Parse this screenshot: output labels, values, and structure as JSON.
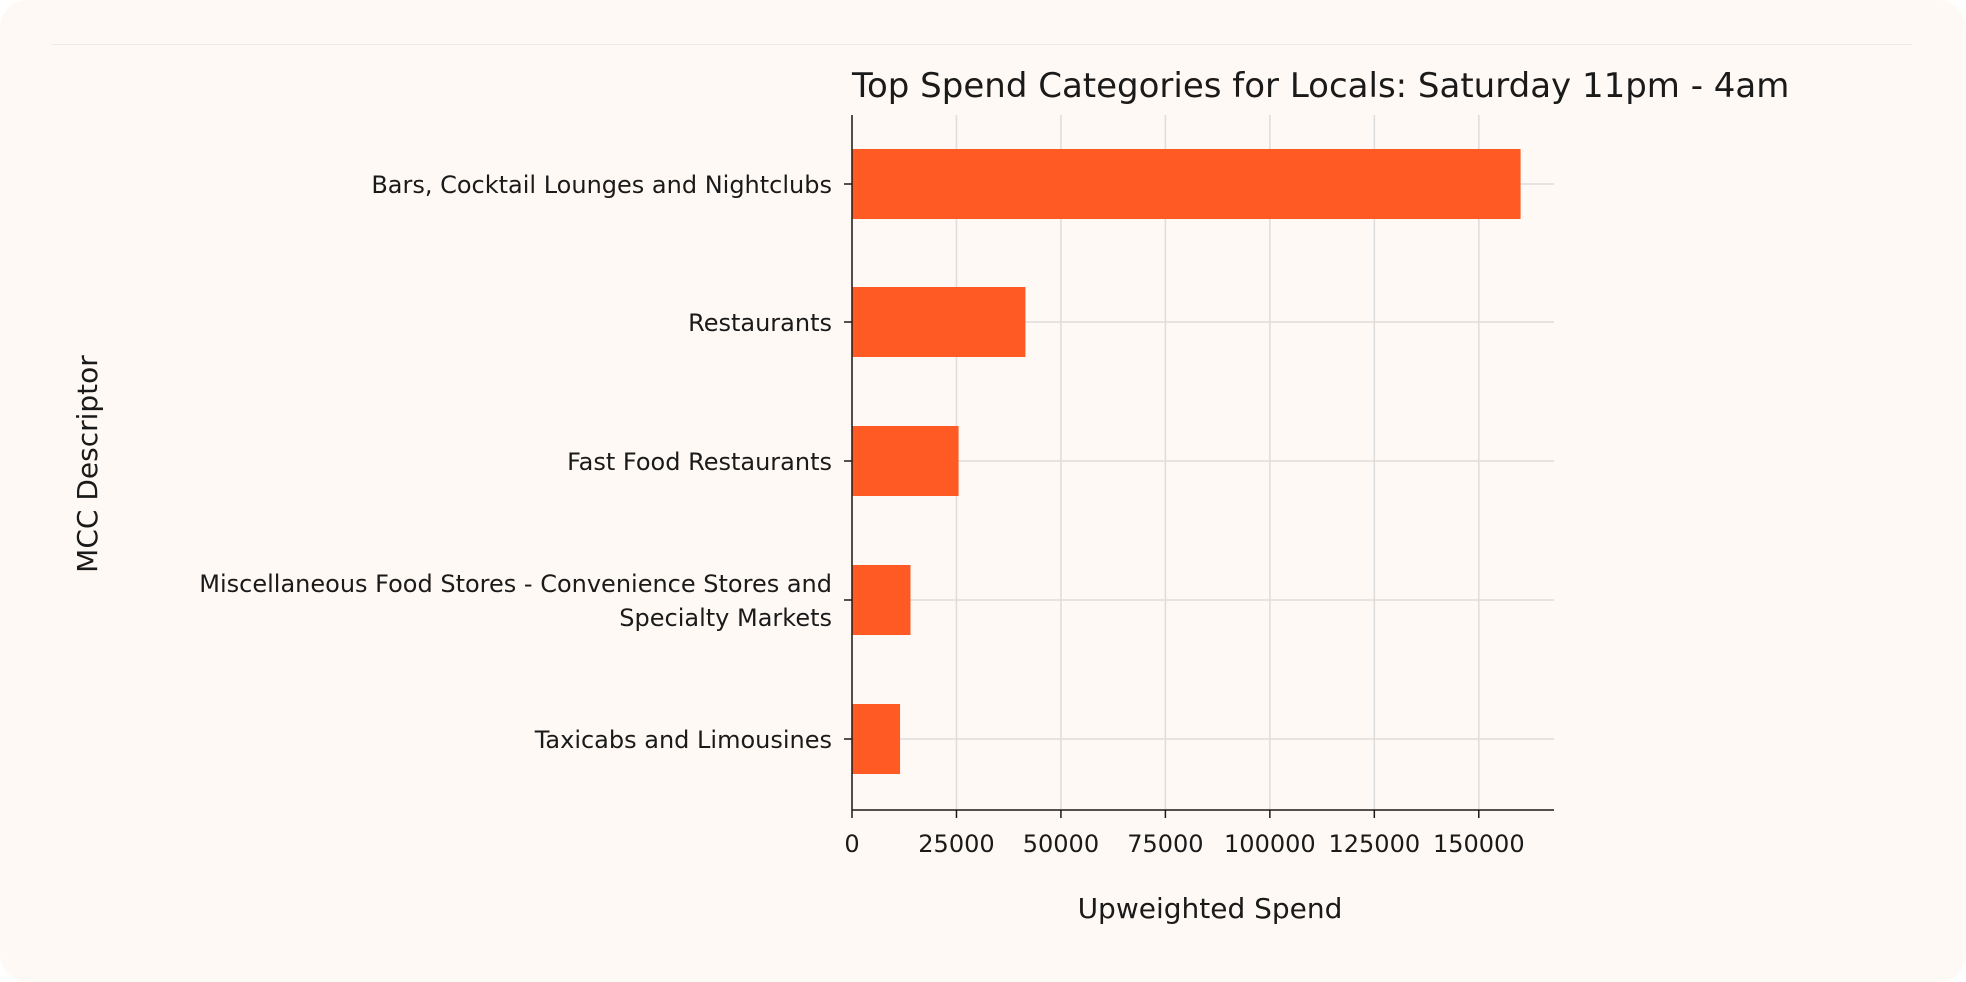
{
  "chart_data": {
    "type": "bar",
    "orientation": "horizontal",
    "title": "Top Spend Categories for Locals: Saturday 11pm - 4am",
    "xlabel": "Upweighted Spend",
    "ylabel": "MCC Descriptor",
    "categories": [
      [
        "Bars, Cocktail Lounges and Nightclubs"
      ],
      [
        "Restaurants"
      ],
      [
        "Fast Food Restaurants"
      ],
      [
        "Miscellaneous Food Stores - Convenience Stores and",
        "Specialty Markets"
      ],
      [
        "Taxicabs and Limousines"
      ]
    ],
    "values": [
      160000,
      41500,
      25500,
      14000,
      11500
    ],
    "xlim": [
      0,
      168000
    ],
    "xticks": [
      0,
      25000,
      50000,
      75000,
      100000,
      125000,
      150000
    ],
    "xtick_labels": [
      "0",
      "25000",
      "50000",
      "75000",
      "100000",
      "125000",
      "150000"
    ],
    "grid": true,
    "bar_color": "#ff5a24",
    "grid_color": "#dddddd",
    "axis_color": "#1a1a1a"
  }
}
